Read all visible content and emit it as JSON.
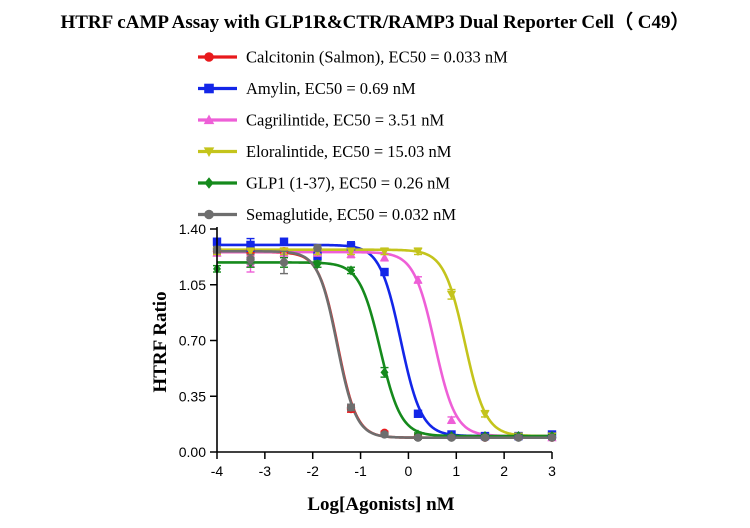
{
  "chart_data": {
    "type": "line",
    "title": "HTRF cAMP Assay with GLP1R&CTR/RAMP3 Dual Reporter Cell（ C49）",
    "xlabel": "Log[Agonists] nM",
    "ylabel": "HTRF Ratio",
    "xlim": [
      -4,
      3
    ],
    "ylim": [
      0,
      1.4
    ],
    "x_ticks": [
      "-4",
      "-3",
      "-2",
      "-1",
      "0",
      "1",
      "2",
      "3"
    ],
    "y_ticks": [
      "0.00",
      "0.35",
      "0.70",
      "1.05",
      "1.40"
    ],
    "legend_position": "top",
    "grid": false,
    "series": [
      {
        "name": "Calcitonin (Salmon), EC50 = 0.033 nM",
        "color": "#e8191c",
        "marker": "circle",
        "fit": {
          "bottom": 0.09,
          "top": 1.255,
          "logEC50": -1.48,
          "hill": 2.2
        },
        "x": [
          -4,
          -3.3,
          -2.6,
          -1.9,
          -1.2,
          -0.5,
          0.2,
          0.9,
          1.6,
          2.3,
          3
        ],
        "y": [
          1.26,
          1.25,
          1.26,
          1.24,
          0.27,
          0.12,
          0.1,
          0.1,
          0.09,
          0.1,
          0.09
        ],
        "err": [
          0.02,
          0.02,
          0.02,
          0.02,
          0.02,
          0.01,
          0.01,
          0.01,
          0.01,
          0.01,
          0.01
        ]
      },
      {
        "name": "Amylin, EC50 = 0.69 nM",
        "color": "#1326e8",
        "marker": "square",
        "fit": {
          "bottom": 0.1,
          "top": 1.3,
          "logEC50": -0.16,
          "hill": 2.0
        },
        "x": [
          -4,
          -3.3,
          -2.6,
          -1.9,
          -1.2,
          -0.5,
          0.2,
          0.9,
          1.6,
          2.3,
          3
        ],
        "y": [
          1.32,
          1.3,
          1.32,
          1.23,
          1.29,
          1.13,
          0.24,
          0.11,
          0.1,
          0.1,
          0.11
        ],
        "err": [
          0.02,
          0.04,
          0.02,
          0.02,
          0.03,
          0.02,
          0.02,
          0.01,
          0.01,
          0.01,
          0.01
        ]
      },
      {
        "name": "Cagrilintide, EC50 = 3.51 nM",
        "color": "#ee5fd7",
        "marker": "triangle-up",
        "fit": {
          "bottom": 0.1,
          "top": 1.255,
          "logEC50": 0.55,
          "hill": 2.0
        },
        "x": [
          -4,
          -3.3,
          -2.6,
          -1.9,
          -1.2,
          -0.5,
          0.2,
          0.9,
          1.6,
          2.3,
          3
        ],
        "y": [
          1.25,
          1.18,
          1.25,
          1.25,
          1.24,
          1.22,
          1.08,
          0.2,
          0.1,
          0.1,
          0.09
        ],
        "err": [
          0.02,
          0.05,
          0.02,
          0.02,
          0.02,
          0.02,
          0.02,
          0.02,
          0.01,
          0.01,
          0.01
        ]
      },
      {
        "name": "Eloralintide, EC50 = 15.03 nM",
        "color": "#c4c41c",
        "marker": "triangle-down",
        "fit": {
          "bottom": 0.1,
          "top": 1.27,
          "logEC50": 1.18,
          "hill": 2.0
        },
        "x": [
          -4,
          -3.3,
          -2.6,
          -1.9,
          -1.2,
          -0.5,
          0.2,
          0.9,
          1.6,
          2.3,
          3
        ],
        "y": [
          1.26,
          1.26,
          1.26,
          1.26,
          1.26,
          1.26,
          1.26,
          0.99,
          0.24,
          0.1,
          0.1
        ],
        "err": [
          0.02,
          0.02,
          0.02,
          0.02,
          0.02,
          0.02,
          0.02,
          0.03,
          0.02,
          0.01,
          0.01
        ]
      },
      {
        "name": "GLP1 (1-37), EC50 = 0.26 nM",
        "color": "#158a1c",
        "marker": "diamond",
        "fit": {
          "bottom": 0.1,
          "top": 1.19,
          "logEC50": -0.59,
          "hill": 2.0
        },
        "x": [
          -4,
          -3.3,
          -2.6,
          -1.9,
          -1.2,
          -0.5,
          0.2,
          0.9,
          1.6,
          2.3,
          3
        ],
        "y": [
          1.15,
          1.19,
          1.19,
          1.18,
          1.14,
          0.5,
          0.11,
          0.1,
          0.1,
          0.1,
          0.1
        ],
        "err": [
          0.02,
          0.03,
          0.03,
          0.02,
          0.02,
          0.03,
          0.01,
          0.01,
          0.01,
          0.01,
          0.01
        ]
      },
      {
        "name": "Semaglutide, EC50 = 0.032 nM",
        "color": "#6e6e6e",
        "marker": "circle",
        "fit": {
          "bottom": 0.09,
          "top": 1.26,
          "logEC50": -1.49,
          "hill": 2.2
        },
        "x": [
          -4,
          -3.3,
          -2.6,
          -1.9,
          -1.2,
          -0.5,
          0.2,
          0.9,
          1.6,
          2.3,
          3
        ],
        "y": [
          1.27,
          1.21,
          1.19,
          1.28,
          0.28,
          0.11,
          0.09,
          0.09,
          0.09,
          0.09,
          0.09
        ],
        "err": [
          0.02,
          0.03,
          0.07,
          0.02,
          0.02,
          0.01,
          0.01,
          0.01,
          0.01,
          0.01,
          0.01
        ]
      }
    ]
  }
}
